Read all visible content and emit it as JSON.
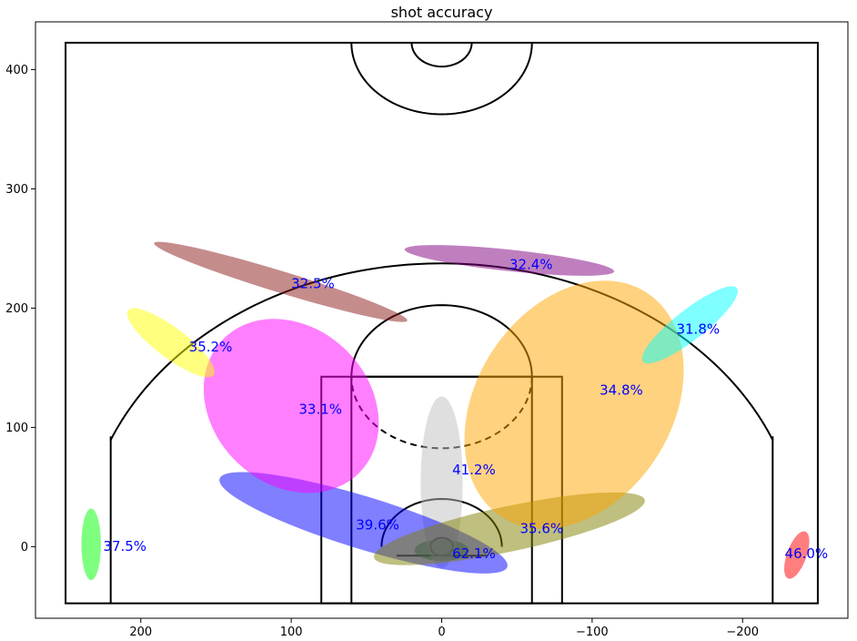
{
  "chart_data": {
    "type": "scatter",
    "title": "shot accuracy",
    "xlabel": "",
    "ylabel": "",
    "xlim": [
      270,
      -270
    ],
    "ylim": [
      -60,
      440
    ],
    "x_ticks": [
      200,
      100,
      0,
      -100,
      -200
    ],
    "x_tick_labels": [
      "200",
      "100",
      "0",
      "−100",
      "−200"
    ],
    "y_ticks": [
      0,
      100,
      200,
      300,
      400
    ],
    "y_tick_labels": [
      "0",
      "100",
      "200",
      "300",
      "400"
    ],
    "grid": false,
    "zones": [
      {
        "label": "37.5%",
        "color": "#00ff00",
        "cx": 233,
        "cy": 2,
        "rx": 6.5,
        "ry": 30,
        "angle": 0
      },
      {
        "label": "46.0%",
        "color": "#ff0000",
        "cx": -236,
        "cy": -7,
        "rx": 6.5,
        "ry": 21,
        "angle": -20
      },
      {
        "label": "62.1%",
        "color": "#008000",
        "cx": 0,
        "cy": -3,
        "rx": 18,
        "ry": 9,
        "angle": 0
      },
      {
        "label": "41.2%",
        "color": "#c0c0c0",
        "cx": 0,
        "cy": 54,
        "rx": 14,
        "ry": 72,
        "angle": 0
      },
      {
        "label": "39.6%",
        "color": "#0000ff",
        "cx": 52,
        "cy": 20,
        "rx": 100,
        "ry": 22,
        "angle": -17
      },
      {
        "label": "35.6%",
        "color": "#808000",
        "cx": -45,
        "cy": 15,
        "rx": 92,
        "ry": 19,
        "angle": 12
      },
      {
        "label": "33.1%",
        "color": "#ff00ff",
        "cx": 100,
        "cy": 118,
        "rx": 52,
        "ry": 80,
        "angle": 46
      },
      {
        "label": "34.8%",
        "color": "#ffa500",
        "cx": -88,
        "cy": 119,
        "rx": 65,
        "ry": 112,
        "angle": -33
      },
      {
        "label": "35.2%",
        "color": "#ffff00",
        "cx": 180,
        "cy": 171,
        "rx": 10,
        "ry": 45,
        "angle": 53
      },
      {
        "label": "32.5%",
        "color": "#8b1a1a",
        "cx": 107,
        "cy": 222,
        "rx": 88,
        "ry": 9,
        "angle": -17
      },
      {
        "label": "32.4%",
        "color": "#800080",
        "cx": -45,
        "cy": 240,
        "rx": 70,
        "ry": 9,
        "angle": -6
      },
      {
        "label": "31.8%",
        "color": "#00ffff",
        "cx": -165,
        "cy": 186,
        "rx": 10,
        "ry": 50,
        "angle": -52
      }
    ],
    "label_positions": [
      {
        "label": "37.5%",
        "x": 225,
        "y": 0
      },
      {
        "label": "46.0%",
        "x": -228,
        "y": -6
      },
      {
        "label": "62.1%",
        "x": -7,
        "y": -6
      },
      {
        "label": "41.2%",
        "x": -7,
        "y": 64
      },
      {
        "label": "39.6%",
        "x": 57,
        "y": 18
      },
      {
        "label": "35.6%",
        "x": -52,
        "y": 15
      },
      {
        "label": "33.1%",
        "x": 95,
        "y": 115
      },
      {
        "label": "34.8%",
        "x": -105,
        "y": 131
      },
      {
        "label": "35.2%",
        "x": 168,
        "y": 167
      },
      {
        "label": "32.5%",
        "x": 100,
        "y": 220
      },
      {
        "label": "32.4%",
        "x": -45,
        "y": 236
      },
      {
        "label": "31.8%",
        "x": -156,
        "y": 182
      }
    ]
  }
}
